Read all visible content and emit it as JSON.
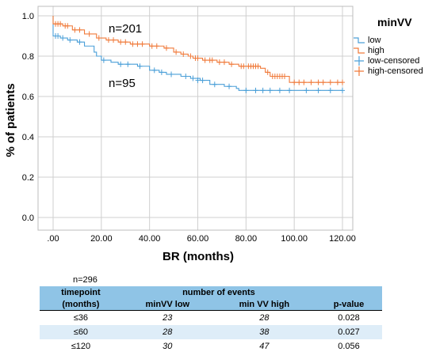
{
  "chart_data": {
    "type": "line",
    "xlabel": "BR (months)",
    "ylabel": "% of patients",
    "xlim": [
      -5,
      125
    ],
    "ylim": [
      -0.05,
      1.02
    ],
    "xticks": [
      0,
      20,
      40,
      60,
      80,
      100,
      120
    ],
    "xtick_labels": [
      ".00",
      "20.00",
      "40.00",
      "60.00",
      "80.00",
      "100.00",
      "120.00"
    ],
    "yticks": [
      0.0,
      0.2,
      0.4,
      0.6,
      0.8,
      1.0
    ],
    "ytick_labels": [
      "0.0",
      "0.2",
      "0.4",
      "0.6",
      "0.8",
      "1.0"
    ],
    "grid": true,
    "annotations": [
      {
        "text": "n=201",
        "x": 23,
        "y": 0.925
      },
      {
        "text": "n=95",
        "x": 23,
        "y": 0.665
      }
    ],
    "legend": {
      "title": "minVV",
      "placement": "right",
      "entries": [
        "low",
        "high",
        "low-censored",
        "high-censored"
      ]
    },
    "series": [
      {
        "name": "low",
        "color": "#4a9fd8",
        "steps": [
          [
            0,
            1.0
          ],
          [
            0,
            0.9
          ],
          [
            3,
            0.89
          ],
          [
            6,
            0.88
          ],
          [
            10,
            0.87
          ],
          [
            13,
            0.85
          ],
          [
            17,
            0.82
          ],
          [
            18,
            0.8
          ],
          [
            20,
            0.78
          ],
          [
            24,
            0.77
          ],
          [
            27,
            0.76
          ],
          [
            35,
            0.75
          ],
          [
            40,
            0.73
          ],
          [
            44,
            0.72
          ],
          [
            47,
            0.71
          ],
          [
            53,
            0.7
          ],
          [
            57,
            0.69
          ],
          [
            61,
            0.68
          ],
          [
            65,
            0.66
          ],
          [
            71,
            0.65
          ],
          [
            76,
            0.64
          ],
          [
            77,
            0.63
          ],
          [
            120,
            0.63
          ]
        ],
        "censored": [
          [
            1,
            0.9
          ],
          [
            2,
            0.9
          ],
          [
            4,
            0.89
          ],
          [
            7,
            0.88
          ],
          [
            11,
            0.87
          ],
          [
            21,
            0.78
          ],
          [
            28,
            0.76
          ],
          [
            31,
            0.76
          ],
          [
            36,
            0.75
          ],
          [
            42,
            0.73
          ],
          [
            45,
            0.72
          ],
          [
            49,
            0.71
          ],
          [
            55,
            0.7
          ],
          [
            58,
            0.69
          ],
          [
            60,
            0.68
          ],
          [
            62,
            0.68
          ],
          [
            67,
            0.66
          ],
          [
            73,
            0.65
          ],
          [
            80,
            0.63
          ],
          [
            84,
            0.63
          ],
          [
            87,
            0.63
          ],
          [
            90,
            0.63
          ],
          [
            94,
            0.63
          ],
          [
            98,
            0.63
          ],
          [
            105,
            0.63
          ],
          [
            110,
            0.63
          ],
          [
            115,
            0.63
          ],
          [
            120,
            0.63
          ]
        ]
      },
      {
        "name": "high",
        "color": "#f07a3a",
        "steps": [
          [
            0,
            1.0
          ],
          [
            0,
            0.96
          ],
          [
            4,
            0.95
          ],
          [
            8,
            0.93
          ],
          [
            13,
            0.91
          ],
          [
            18,
            0.89
          ],
          [
            22,
            0.88
          ],
          [
            27,
            0.87
          ],
          [
            32,
            0.86
          ],
          [
            40,
            0.85
          ],
          [
            46,
            0.84
          ],
          [
            50,
            0.82
          ],
          [
            53,
            0.81
          ],
          [
            56,
            0.8
          ],
          [
            58,
            0.79
          ],
          [
            62,
            0.78
          ],
          [
            68,
            0.77
          ],
          [
            73,
            0.76
          ],
          [
            77,
            0.75
          ],
          [
            86,
            0.74
          ],
          [
            88,
            0.72
          ],
          [
            90,
            0.7
          ],
          [
            98,
            0.67
          ],
          [
            120,
            0.67
          ]
        ],
        "censored": [
          [
            1,
            0.96
          ],
          [
            2,
            0.96
          ],
          [
            3,
            0.96
          ],
          [
            5,
            0.95
          ],
          [
            6,
            0.95
          ],
          [
            9,
            0.93
          ],
          [
            11,
            0.93
          ],
          [
            15,
            0.91
          ],
          [
            19,
            0.89
          ],
          [
            23,
            0.88
          ],
          [
            25,
            0.88
          ],
          [
            28,
            0.87
          ],
          [
            30,
            0.87
          ],
          [
            33,
            0.86
          ],
          [
            35,
            0.86
          ],
          [
            37,
            0.86
          ],
          [
            41,
            0.85
          ],
          [
            43,
            0.85
          ],
          [
            47,
            0.84
          ],
          [
            51,
            0.82
          ],
          [
            54,
            0.81
          ],
          [
            57,
            0.8
          ],
          [
            59,
            0.79
          ],
          [
            60,
            0.79
          ],
          [
            63,
            0.78
          ],
          [
            65,
            0.78
          ],
          [
            66,
            0.78
          ],
          [
            69,
            0.77
          ],
          [
            71,
            0.77
          ],
          [
            74,
            0.76
          ],
          [
            78,
            0.75
          ],
          [
            79,
            0.75
          ],
          [
            81,
            0.75
          ],
          [
            82,
            0.75
          ],
          [
            83,
            0.75
          ],
          [
            84,
            0.75
          ],
          [
            85,
            0.75
          ],
          [
            89,
            0.72
          ],
          [
            91,
            0.7
          ],
          [
            92,
            0.7
          ],
          [
            93,
            0.7
          ],
          [
            94,
            0.7
          ],
          [
            95,
            0.7
          ],
          [
            96,
            0.7
          ],
          [
            100,
            0.67
          ],
          [
            102,
            0.67
          ],
          [
            104,
            0.67
          ],
          [
            107,
            0.67
          ],
          [
            110,
            0.67
          ],
          [
            112,
            0.67
          ],
          [
            115,
            0.67
          ],
          [
            118,
            0.67
          ],
          [
            120,
            0.67
          ]
        ]
      }
    ]
  },
  "table": {
    "n_label": "n=296",
    "header_row1": [
      "timepoint",
      "number of events",
      "",
      ""
    ],
    "header_row2": [
      "(months)",
      "minVV low",
      "min VV high",
      "p-value"
    ],
    "rows": [
      [
        "≤36",
        "23",
        "28",
        "0.028"
      ],
      [
        "≤60",
        "28",
        "38",
        "0.027"
      ],
      [
        "≤120",
        "30",
        "47",
        "0.056"
      ]
    ]
  }
}
